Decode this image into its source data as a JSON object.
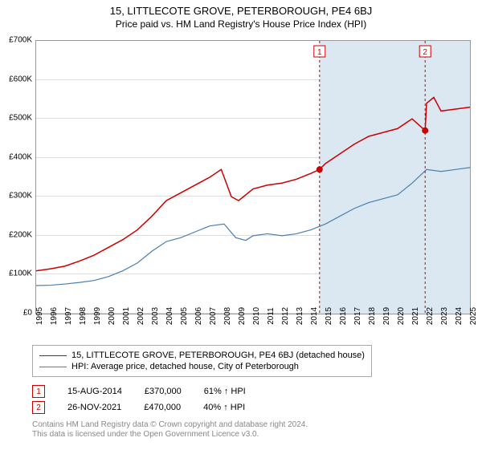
{
  "title": "15, LITTLECOTE GROVE, PETERBOROUGH, PE4 6BJ",
  "subtitle": "Price paid vs. HM Land Registry's House Price Index (HPI)",
  "chart": {
    "type": "line",
    "background_color": "#ffffff",
    "grid_color": "#dddddd",
    "border_color": "#999999",
    "x_start_year": 1995,
    "x_end_year": 2025,
    "x_tick_years": [
      1995,
      1996,
      1997,
      1998,
      1999,
      2000,
      2001,
      2002,
      2003,
      2004,
      2005,
      2006,
      2007,
      2008,
      2009,
      2010,
      2011,
      2012,
      2013,
      2014,
      2015,
      2016,
      2017,
      2018,
      2019,
      2020,
      2021,
      2022,
      2023,
      2024,
      2025
    ],
    "y_min": 0,
    "y_max": 700000,
    "y_ticks": [
      0,
      100000,
      200000,
      300000,
      400000,
      500000,
      600000,
      700000
    ],
    "y_tick_labels": [
      "£0",
      "£100K",
      "£200K",
      "£300K",
      "£400K",
      "£500K",
      "£600K",
      "£700K"
    ],
    "shade_start_year": 2014.6,
    "shade_end_year": 2025.5,
    "shade_color": "#dbe8f2",
    "series_property": {
      "label": "15, LITTLECOTE GROVE, PETERBOROUGH, PE4 6BJ (detached house)",
      "color": "#cc0000",
      "width": 1.5,
      "data": [
        [
          1995.0,
          110000
        ],
        [
          1996.0,
          115000
        ],
        [
          1997.0,
          122000
        ],
        [
          1998.0,
          135000
        ],
        [
          1999.0,
          150000
        ],
        [
          2000.0,
          170000
        ],
        [
          2001.0,
          190000
        ],
        [
          2002.0,
          215000
        ],
        [
          2003.0,
          250000
        ],
        [
          2004.0,
          290000
        ],
        [
          2005.0,
          310000
        ],
        [
          2006.0,
          330000
        ],
        [
          2007.0,
          350000
        ],
        [
          2007.8,
          370000
        ],
        [
          2008.5,
          300000
        ],
        [
          2009.0,
          290000
        ],
        [
          2010.0,
          320000
        ],
        [
          2011.0,
          330000
        ],
        [
          2012.0,
          335000
        ],
        [
          2013.0,
          345000
        ],
        [
          2014.0,
          360000
        ],
        [
          2014.6,
          370000
        ],
        [
          2015.0,
          385000
        ],
        [
          2016.0,
          410000
        ],
        [
          2017.0,
          435000
        ],
        [
          2018.0,
          455000
        ],
        [
          2019.0,
          465000
        ],
        [
          2020.0,
          475000
        ],
        [
          2021.0,
          500000
        ],
        [
          2021.9,
          470000
        ],
        [
          2022.0,
          540000
        ],
        [
          2022.5,
          555000
        ],
        [
          2023.0,
          520000
        ],
        [
          2024.0,
          525000
        ],
        [
          2025.0,
          530000
        ]
      ]
    },
    "series_hpi": {
      "label": "HPI: Average price, detached house, City of Peterborough",
      "color": "#4a7fb0",
      "width": 1.2,
      "data": [
        [
          1995.0,
          72000
        ],
        [
          1996.0,
          73000
        ],
        [
          1997.0,
          76000
        ],
        [
          1998.0,
          80000
        ],
        [
          1999.0,
          85000
        ],
        [
          2000.0,
          95000
        ],
        [
          2001.0,
          110000
        ],
        [
          2002.0,
          130000
        ],
        [
          2003.0,
          160000
        ],
        [
          2004.0,
          185000
        ],
        [
          2005.0,
          195000
        ],
        [
          2006.0,
          210000
        ],
        [
          2007.0,
          225000
        ],
        [
          2008.0,
          230000
        ],
        [
          2008.8,
          195000
        ],
        [
          2009.5,
          188000
        ],
        [
          2010.0,
          200000
        ],
        [
          2011.0,
          205000
        ],
        [
          2012.0,
          200000
        ],
        [
          2013.0,
          205000
        ],
        [
          2014.0,
          215000
        ],
        [
          2015.0,
          230000
        ],
        [
          2016.0,
          250000
        ],
        [
          2017.0,
          270000
        ],
        [
          2018.0,
          285000
        ],
        [
          2019.0,
          295000
        ],
        [
          2020.0,
          305000
        ],
        [
          2021.0,
          335000
        ],
        [
          2022.0,
          370000
        ],
        [
          2023.0,
          365000
        ],
        [
          2024.0,
          370000
        ],
        [
          2025.0,
          375000
        ]
      ]
    },
    "events": [
      {
        "n": "1",
        "year": 2014.6,
        "value": 370000,
        "marker_color": "#cc0000",
        "date": "15-AUG-2014",
        "price": "£370,000",
        "pct": "61% ↑ HPI"
      },
      {
        "n": "2",
        "year": 2021.9,
        "value": 470000,
        "marker_color": "#cc0000",
        "date": "26-NOV-2021",
        "price": "£470,000",
        "pct": "40% ↑ HPI"
      }
    ],
    "vline_color": "#cc0000",
    "vline_dash": "3,3"
  },
  "footer_line1": "Contains HM Land Registry data © Crown copyright and database right 2024.",
  "footer_line2": "This data is licensed under the Open Government Licence v3.0."
}
